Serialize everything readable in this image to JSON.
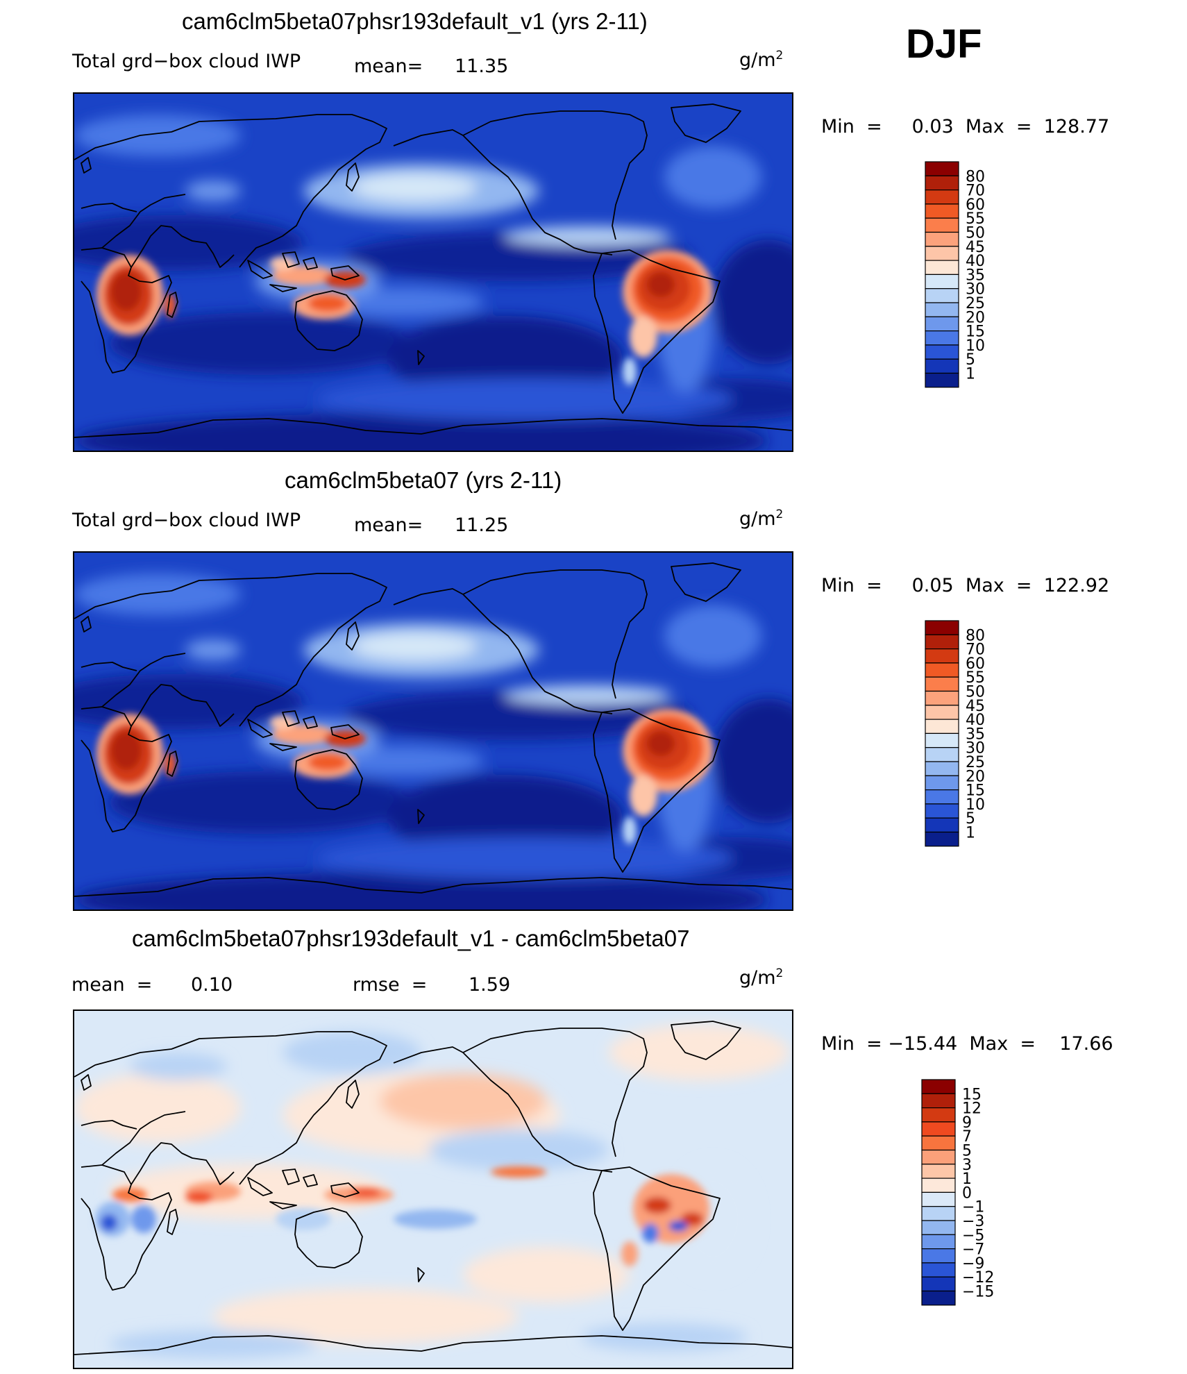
{
  "season": "DJF",
  "unit_prefix": "g/m",
  "unit_exp": "2",
  "panels": [
    {
      "title": "cam6clm5beta07phsr193default_v1 (yrs 2-11)",
      "variable": "Total grd−box cloud IWP",
      "stat1_label": "mean=",
      "stat1_value": "11.35",
      "minmax": "Min  =     0.03  Max  =  128.77",
      "colormap": "abs"
    },
    {
      "title": "cam6clm5beta07 (yrs 2-11)",
      "variable": "Total grd−box cloud IWP",
      "stat1_label": "mean=",
      "stat1_value": "11.25",
      "minmax": "Min  =     0.05  Max  =  122.92",
      "colormap": "abs"
    },
    {
      "title": "cam6clm5beta07phsr193default_v1 - cam6clm5beta07",
      "stat1_label": "mean  =",
      "stat1_value": "0.10",
      "stat2_label": "rmse  =",
      "stat2_value": "1.59",
      "minmax": "Min  = −15.44  Max  =    17.66",
      "colormap": "diff"
    }
  ],
  "chart_data": [
    {
      "type": "heatmap",
      "title": "cam6clm5beta07phsr193default_v1 (yrs 2-11)",
      "variable": "Total grd-box cloud IWP",
      "units": "g/m2",
      "mean": 11.35,
      "min": 0.03,
      "max": 128.77,
      "levels": [
        "80",
        "70",
        "60",
        "55",
        "50",
        "45",
        "40",
        "35",
        "30",
        "25",
        "20",
        "15",
        "10",
        "5",
        "1"
      ],
      "colors": [
        "#8b0000",
        "#b0200a",
        "#d33a12",
        "#f05a25",
        "#fb7e4b",
        "#fca27c",
        "#fdc5a8",
        "#fde7d6",
        "#d6e8f8",
        "#b8d3f5",
        "#93b7f0",
        "#6e98ec",
        "#4a78e6",
        "#2a55d6",
        "#1436b8",
        "#0a1f8c"
      ]
    },
    {
      "type": "heatmap",
      "title": "cam6clm5beta07 (yrs 2-11)",
      "variable": "Total grd-box cloud IWP",
      "units": "g/m2",
      "mean": 11.25,
      "min": 0.05,
      "max": 122.92,
      "levels": [
        "80",
        "70",
        "60",
        "55",
        "50",
        "45",
        "40",
        "35",
        "30",
        "25",
        "20",
        "15",
        "10",
        "5",
        "1"
      ],
      "colors": [
        "#8b0000",
        "#b0200a",
        "#d33a12",
        "#f05a25",
        "#fb7e4b",
        "#fca27c",
        "#fdc5a8",
        "#fde7d6",
        "#d6e8f8",
        "#b8d3f5",
        "#93b7f0",
        "#6e98ec",
        "#4a78e6",
        "#2a55d6",
        "#1436b8",
        "#0a1f8c"
      ]
    },
    {
      "type": "heatmap",
      "title": "cam6clm5beta07phsr193default_v1 - cam6clm5beta07",
      "units": "g/m2",
      "mean": 0.1,
      "rmse": 1.59,
      "min": -15.44,
      "max": 17.66,
      "levels": [
        "15",
        "12",
        "9",
        "7",
        "5",
        "3",
        "1",
        "0",
        "−1",
        "−3",
        "−5",
        "−7",
        "−9",
        "−12",
        "−15"
      ],
      "colors": [
        "#8b0000",
        "#b0200a",
        "#d33a12",
        "#ef4a20",
        "#f7743e",
        "#fba07a",
        "#fdc6a8",
        "#fde8da",
        "#dbe9f8",
        "#b8d3f5",
        "#93b7f0",
        "#6e98ec",
        "#4a78e6",
        "#2a55d6",
        "#1436b8",
        "#0a1f8c"
      ]
    }
  ]
}
